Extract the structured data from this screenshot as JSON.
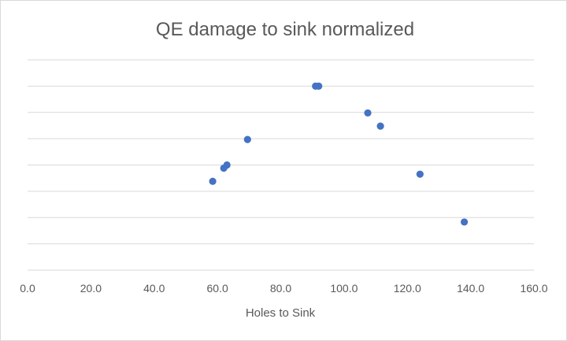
{
  "chart_data": {
    "type": "scatter",
    "title": "QE damage to sink normalized",
    "xlabel": "Holes to Sink",
    "ylabel": "",
    "xlim": [
      0,
      160
    ],
    "ylim": [
      0,
      8
    ],
    "x_ticks": [
      "0.0",
      "20.0",
      "40.0",
      "60.0",
      "80.0",
      "100.0",
      "120.0",
      "140.0",
      "160.0"
    ],
    "y_tick_labels_shown": false,
    "grid": "horizontal",
    "gridline_count": 8,
    "marker_color": "#4472C4",
    "gridline_color": "#d9d9d9",
    "series": [
      {
        "points": [
          {
            "x": 58.5,
            "y": 3.38
          },
          {
            "x": 62.0,
            "y": 3.88
          },
          {
            "x": 63.0,
            "y": 4.0
          },
          {
            "x": 69.5,
            "y": 4.97
          },
          {
            "x": 91.0,
            "y": 7.0
          },
          {
            "x": 92.0,
            "y": 7.0
          },
          {
            "x": 107.5,
            "y": 5.98
          },
          {
            "x": 111.5,
            "y": 5.48
          },
          {
            "x": 124.0,
            "y": 3.65
          },
          {
            "x": 138.0,
            "y": 1.83
          }
        ]
      }
    ]
  }
}
